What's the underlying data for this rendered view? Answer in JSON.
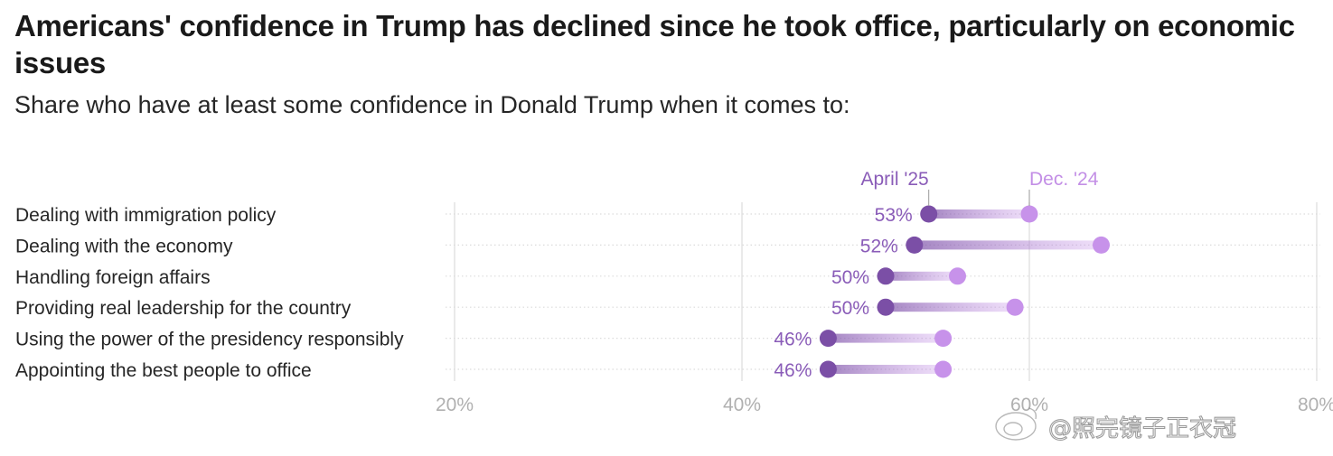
{
  "title": "Americans' confidence in Trump has declined since he took office, particularly on economic issues",
  "subtitle": "Share who have at least some confidence in Donald Trump when it comes to:",
  "watermark": "@照完镜子正衣冠",
  "colors": {
    "april": "#7b4fa6",
    "dec": "#c792ea",
    "april_text": "#8a5cb8",
    "dec_text": "#c38fe6",
    "grid": "#e3e3e3",
    "tick": "#b0b0b0"
  },
  "chart_data": {
    "type": "dumbbell",
    "title": "Americans' confidence in Trump has declined since he took office, particularly on economic issues",
    "subtitle": "Share who have at least some confidence in Donald Trump when it comes to:",
    "series": [
      {
        "name": "April '25",
        "values": [
          53,
          52,
          50,
          50,
          46,
          46
        ]
      },
      {
        "name": "Dec. '24",
        "values": [
          60,
          65,
          55,
          59,
          54,
          54
        ]
      }
    ],
    "categories": [
      "Dealing with immigration policy",
      "Dealing with the economy",
      "Handling foreign affairs",
      "Providing real leadership for the country",
      "Using the power of the presidency responsibly",
      "Appointing the best people to office"
    ],
    "value_labels": [
      "53%",
      "52%",
      "50%",
      "50%",
      "46%",
      "46%"
    ],
    "xlim": [
      20,
      80
    ],
    "xticks": [
      20,
      40,
      60,
      80
    ],
    "xtick_labels": [
      "20%",
      "40%",
      "60%",
      "80%"
    ],
    "legend_placement": "top, annotating first row"
  }
}
